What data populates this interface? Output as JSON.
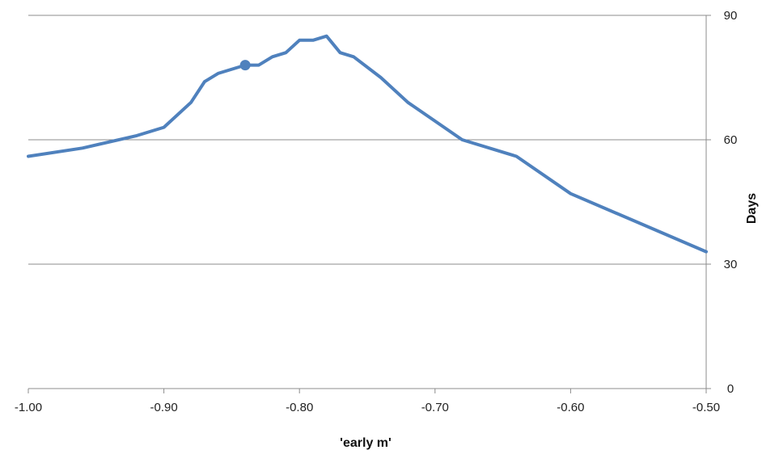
{
  "chart_data": {
    "type": "line",
    "title": "",
    "xlabel": "'early m'",
    "ylabel": "Days",
    "xlim": [
      -1.0,
      -0.5
    ],
    "ylim": [
      0,
      90
    ],
    "x_ticks": [
      -1.0,
      -0.9,
      -0.8,
      -0.7,
      -0.6,
      -0.5
    ],
    "x_tick_labels": [
      "-1.00",
      "-0.90",
      "-0.80",
      "-0.70",
      "-0.60",
      "-0.50"
    ],
    "y_ticks": [
      0,
      30,
      60,
      90
    ],
    "y_tick_labels": [
      "0",
      "30",
      "60",
      "90"
    ],
    "y_axis_side": "right",
    "grid": "horizontal",
    "legend": "none",
    "series": [
      {
        "color": "#4f81bd",
        "x": [
          -1.0,
          -0.96,
          -0.92,
          -0.9,
          -0.88,
          -0.87,
          -0.86,
          -0.84,
          -0.83,
          -0.82,
          -0.81,
          -0.8,
          -0.79,
          -0.78,
          -0.77,
          -0.76,
          -0.74,
          -0.72,
          -0.7,
          -0.68,
          -0.64,
          -0.6,
          -0.5
        ],
        "y": [
          56,
          58,
          61,
          63,
          69,
          74,
          76,
          78,
          78,
          80,
          81,
          84,
          84,
          85,
          81,
          80,
          75,
          69,
          64.5,
          60,
          56,
          47,
          33
        ]
      }
    ],
    "markers": [
      {
        "x": -0.84,
        "y": 78
      }
    ]
  }
}
